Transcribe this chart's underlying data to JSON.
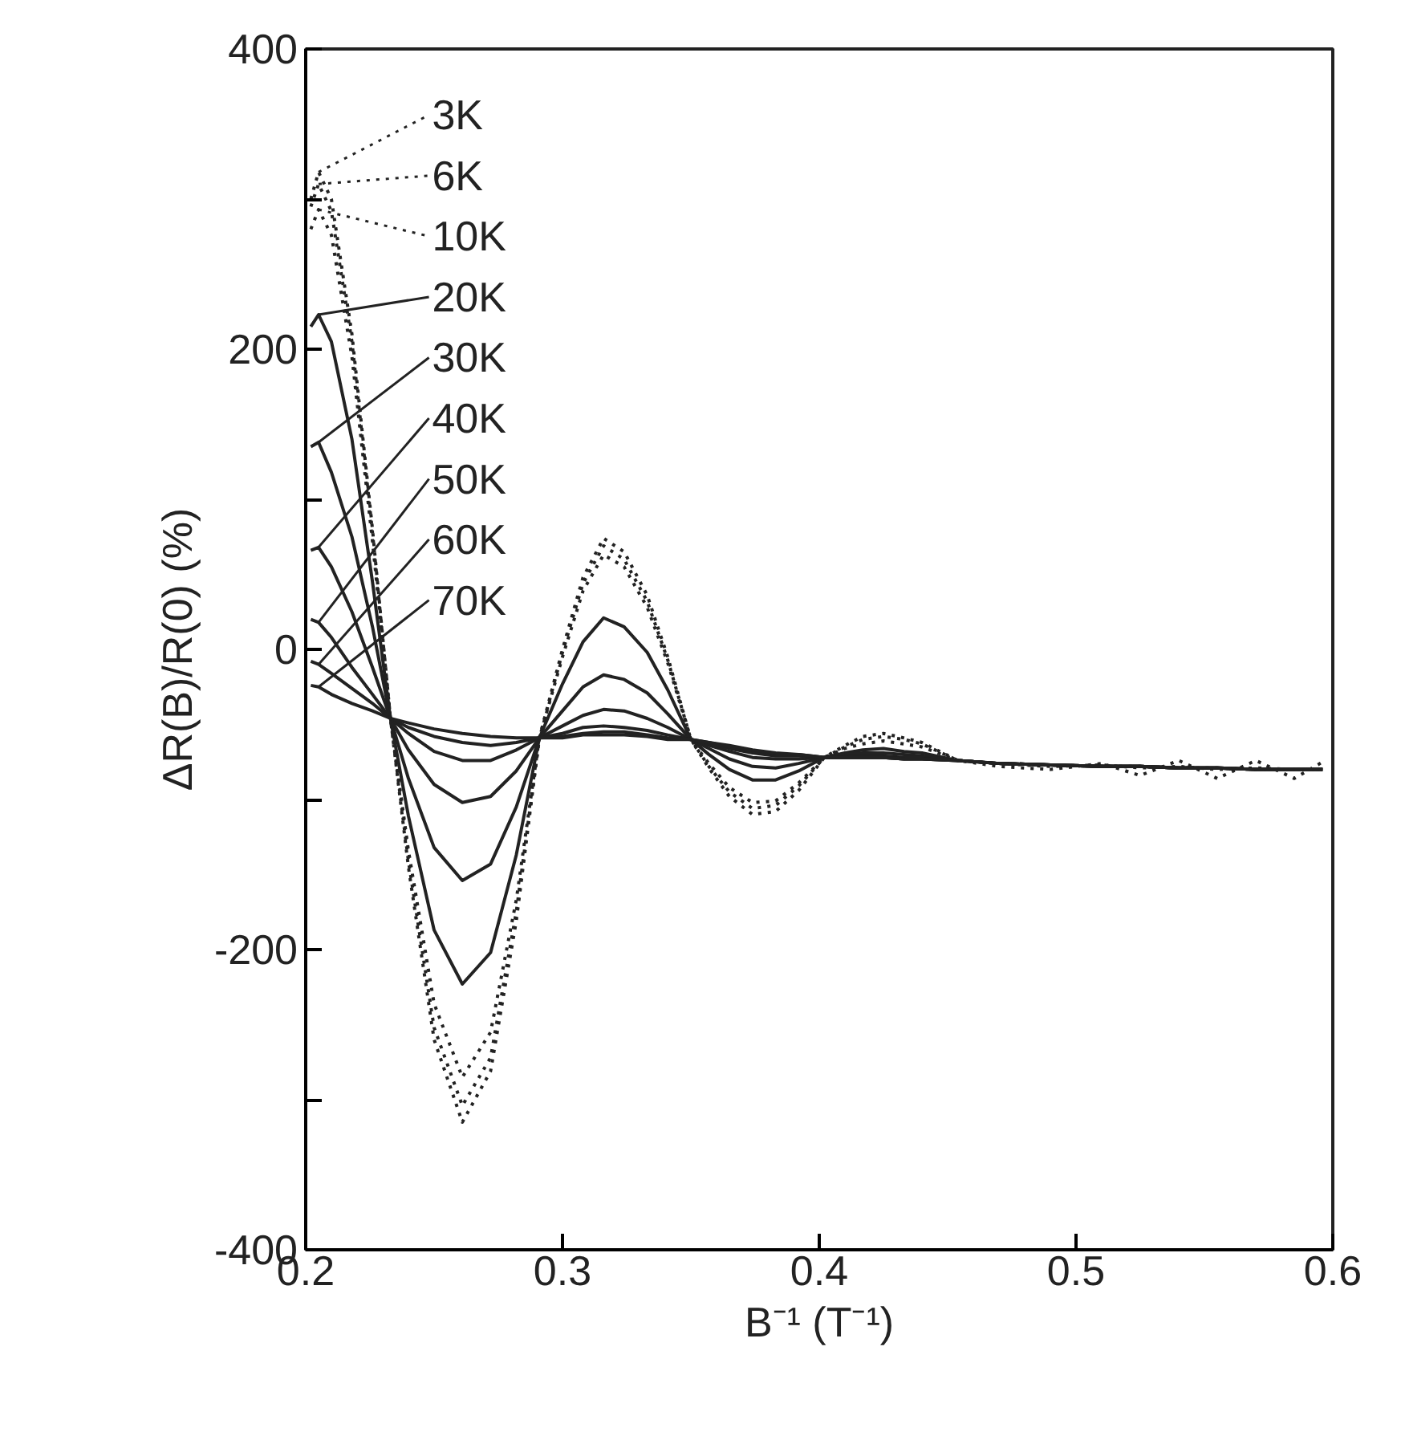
{
  "chart_data": {
    "type": "line",
    "xlabel": "B⁻¹ (T⁻¹)",
    "ylabel": "ΔR(B)/R(0) (%)",
    "x": [
      0.202,
      0.205,
      0.21,
      0.218,
      0.226,
      0.233,
      0.24,
      0.25,
      0.261,
      0.272,
      0.282,
      0.291,
      0.3,
      0.308,
      0.316,
      0.324,
      0.333,
      0.341,
      0.35,
      0.357,
      0.365,
      0.374,
      0.383,
      0.392,
      0.402,
      0.41,
      0.417,
      0.425,
      0.433,
      0.44,
      0.454,
      0.47,
      0.49,
      0.51,
      0.525,
      0.54,
      0.555,
      0.57,
      0.585,
      0.596
    ],
    "series": [
      {
        "name": "3K",
        "color": "#222222",
        "line_style": "dotted",
        "values": [
          300,
          318,
          300,
          210,
          80,
          -46,
          -145,
          -260,
          -315,
          -281,
          -181,
          -59,
          0,
          48,
          74,
          65,
          36,
          -5,
          -60,
          -79,
          -98,
          -110,
          -108,
          -94,
          -72,
          -64,
          -58,
          -56,
          -59,
          -62,
          -74,
          -78,
          -80,
          -76,
          -84,
          -74,
          -86,
          -74,
          -86,
          -75
        ]
      },
      {
        "name": "6K",
        "color": "#222222",
        "line_style": "dotted",
        "values": [
          295,
          310,
          292,
          205,
          78,
          -46,
          -141,
          -252,
          -304,
          -272,
          -175,
          -59,
          -2,
          44,
          69,
          60,
          32,
          -7,
          -60,
          -78,
          -95,
          -106,
          -104,
          -91,
          -72,
          -65,
          -60,
          -58,
          -60,
          -63,
          -74,
          -76,
          -78,
          -77,
          -79,
          -78,
          -80,
          -79,
          -80,
          -80
        ]
      },
      {
        "name": "10K",
        "color": "#222222",
        "line_style": "dotted",
        "values": [
          280,
          293,
          276,
          195,
          72,
          -46,
          -134,
          -236,
          -285,
          -255,
          -167,
          -59,
          -5,
          39,
          63,
          55,
          28,
          -9,
          -60,
          -76,
          -92,
          -102,
          -101,
          -89,
          -72,
          -66,
          -63,
          -61,
          -63,
          -65,
          -74,
          -76,
          -77,
          -78,
          -78,
          -79,
          -79,
          -80,
          -80,
          -80
        ]
      },
      {
        "name": "20K",
        "color": "#222222",
        "values": [
          215,
          223,
          205,
          140,
          45,
          -46,
          -111,
          -187,
          -223,
          -202,
          -137,
          -59,
          -23,
          5,
          21,
          15,
          -2,
          -27,
          -60,
          -70,
          -80,
          -87,
          -87,
          -81,
          -72,
          -69,
          -67,
          -66,
          -68,
          -69,
          -74,
          -76,
          -77,
          -78,
          -78,
          -79,
          -79,
          -80,
          -80,
          -80
        ]
      },
      {
        "name": "30K",
        "color": "#222222",
        "values": [
          135,
          138,
          118,
          75,
          15,
          -46,
          -86,
          -132,
          -154,
          -143,
          -105,
          -59,
          -41,
          -25,
          -17,
          -20,
          -29,
          -43,
          -60,
          -66,
          -73,
          -78,
          -79,
          -76,
          -72,
          -70,
          -69,
          -69,
          -70,
          -71,
          -74,
          -76,
          -77,
          -78,
          -78,
          -79,
          -79,
          -80,
          -80,
          -80
        ]
      },
      {
        "name": "40K",
        "color": "#222222",
        "values": [
          66,
          68,
          55,
          25,
          -12,
          -46,
          -67,
          -90,
          -102,
          -98,
          -81,
          -59,
          -51,
          -44,
          -40,
          -41,
          -46,
          -52,
          -60,
          -64,
          -68,
          -72,
          -73,
          -73,
          -72,
          -71,
          -71,
          -71,
          -72,
          -72,
          -74,
          -76,
          -77,
          -78,
          -78,
          -79,
          -79,
          -80,
          -80,
          -80
        ]
      },
      {
        "name": "50K",
        "color": "#222222",
        "values": [
          20,
          18,
          8,
          -12,
          -30,
          -46,
          -56,
          -68,
          -74,
          -74,
          -67,
          -59,
          -56,
          -52,
          -51,
          -52,
          -54,
          -57,
          -60,
          -63,
          -66,
          -69,
          -71,
          -71,
          -72,
          -72,
          -72,
          -72,
          -73,
          -73,
          -74,
          -76,
          -77,
          -78,
          -78,
          -79,
          -79,
          -80,
          -80,
          -80
        ]
      },
      {
        "name": "60K",
        "color": "#222222",
        "values": [
          -8,
          -10,
          -16,
          -26,
          -36,
          -46,
          -52,
          -58,
          -62,
          -64,
          -62,
          -59,
          -58,
          -56,
          -55,
          -55,
          -57,
          -59,
          -60,
          -62,
          -65,
          -68,
          -70,
          -70,
          -72,
          -72,
          -72,
          -72,
          -73,
          -73,
          -74,
          -76,
          -77,
          -78,
          -78,
          -79,
          -79,
          -80,
          -80,
          -80
        ]
      },
      {
        "name": "70K",
        "color": "#222222",
        "values": [
          -24,
          -25,
          -30,
          -36,
          -41,
          -46,
          -49,
          -53,
          -56,
          -58,
          -59,
          -59,
          -59,
          -57,
          -57,
          -57,
          -58,
          -60,
          -60,
          -62,
          -64,
          -67,
          -69,
          -70,
          -72,
          -72,
          -72,
          -72,
          -73,
          -73,
          -74,
          -76,
          -77,
          -78,
          -78,
          -79,
          -79,
          -80,
          -80,
          -80
        ]
      }
    ],
    "line_style": "solid",
    "xlim": [
      0.2,
      0.6
    ],
    "xticks": [
      0.2,
      0.3,
      0.4,
      0.5,
      0.6
    ],
    "ylim": [
      -400,
      400
    ],
    "yticks": [
      -400,
      {
        "value": -300,
        "label": null
      },
      -200,
      {
        "value": -100,
        "label": null
      },
      0,
      {
        "value": 100,
        "label": null
      },
      200,
      {
        "value": 300,
        "label": null
      },
      400
    ],
    "grid": false,
    "legend": "top left"
  }
}
